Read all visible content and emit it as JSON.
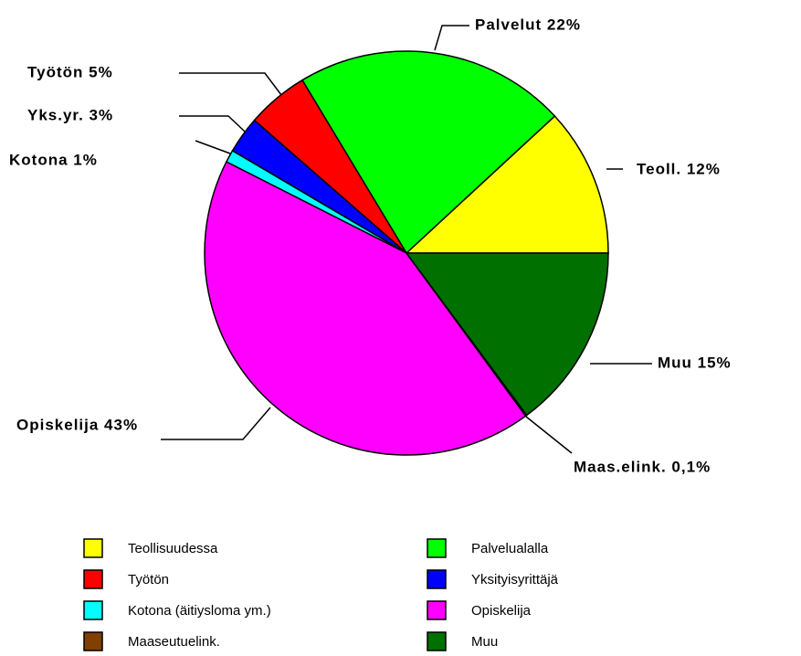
{
  "chart_data": {
    "type": "pie",
    "categories": [
      "Teollisuudessa",
      "Palvelualalla",
      "Työtön",
      "Yksityisyrittäjä",
      "Kotona (äitiysloma ym.)",
      "Opiskelija",
      "Maaseutuelink.",
      "Muu"
    ],
    "values": [
      12,
      22,
      5,
      3,
      1,
      43,
      0.1,
      15
    ],
    "value_labels": [
      "Teoll. 12%",
      "Palvelut 22%",
      "Työtön 5%",
      "Yks.yr. 3%",
      "Kotona 1%",
      "Opiskelija 43%",
      "Maas.elink. 0,1%",
      "Muu 15%"
    ],
    "colors": [
      "#ffff00",
      "#00ff00",
      "#ff0000",
      "#0000ff",
      "#00ffff",
      "#ff00ff",
      "#804000",
      "#007000"
    ]
  }
}
